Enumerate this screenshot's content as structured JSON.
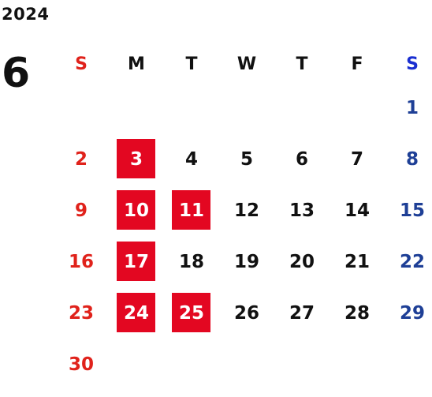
{
  "calendar": {
    "year": "2024",
    "month": "6",
    "colors": {
      "sunday": "#e0221b",
      "saturday": "#1e3f96",
      "holiday_bg": "#e30721",
      "weekday": "#111111"
    },
    "weekdays": [
      "S",
      "M",
      "T",
      "W",
      "T",
      "F",
      "S"
    ],
    "weeks": [
      [
        "",
        "",
        "",
        "",
        "",
        "",
        "1"
      ],
      [
        "2",
        "3",
        "4",
        "5",
        "6",
        "7",
        "8"
      ],
      [
        "9",
        "10",
        "11",
        "12",
        "13",
        "14",
        "15"
      ],
      [
        "16",
        "17",
        "18",
        "19",
        "20",
        "21",
        "22"
      ],
      [
        "23",
        "24",
        "25",
        "26",
        "27",
        "28",
        "29"
      ],
      [
        "30",
        "",
        "",
        "",
        "",
        "",
        ""
      ]
    ],
    "highlighted_days": [
      "3",
      "10",
      "11",
      "17",
      "24",
      "25"
    ]
  }
}
